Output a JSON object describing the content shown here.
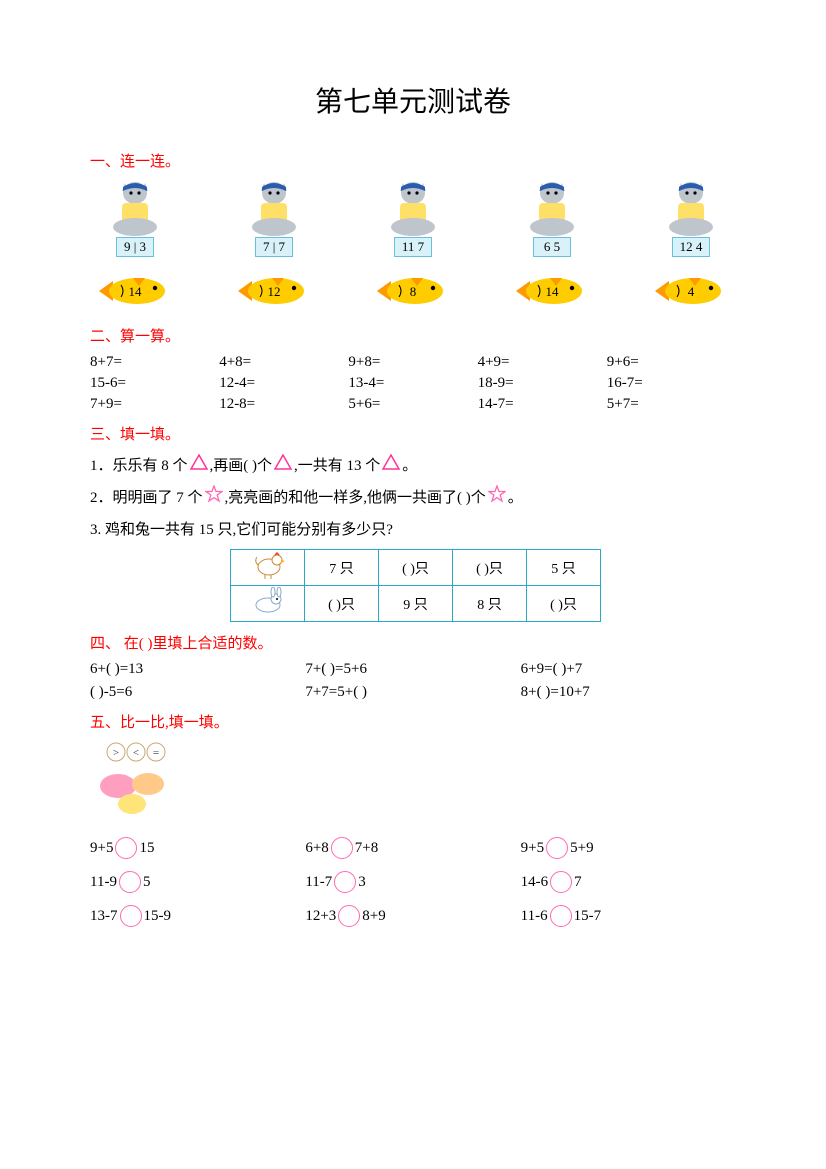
{
  "title": "第七单元测试卷",
  "sections": {
    "s1": "一、连一连。",
    "s2": "二、算一算。",
    "s3": "三、填一填。",
    "s4": "四、 在(      )里填上合适的数。",
    "s5": "五、比一比,填一填。"
  },
  "cats": [
    "9 | 3",
    "7 | 7",
    "11 7",
    "6  5",
    "12 4"
  ],
  "fish": [
    "14",
    "12",
    "8",
    "14",
    "4"
  ],
  "calc": [
    [
      "8+7=",
      "4+8=",
      "9+8=",
      "4+9=",
      "9+6="
    ],
    [
      "15-6=",
      "12-4=",
      "13-4=",
      "18-9=",
      "16-7="
    ],
    [
      "7+9=",
      "12-8=",
      "5+6=",
      "14-7=",
      "5+7="
    ]
  ],
  "q3": {
    "l1a": "1．乐乐有 8 个",
    "l1b": ",再画(      )个",
    "l1c": ",一共有 13 个",
    "l1d": "。",
    "l2a": "2．明明画了 7 个",
    "l2b": ",亮亮画的和他一样多,他俩一共画了(      )个",
    "l2c": "。",
    "l3": "3. 鸡和兔一共有 15 只,它们可能分别有多少只?",
    "table": {
      "r1": [
        "",
        "7 只",
        "(     )只",
        "(     )只",
        "5 只"
      ],
      "r2": [
        "",
        "(     )只",
        "9 只",
        "8 只",
        "(     )只"
      ]
    }
  },
  "q4": {
    "r1": [
      "6+(      )=13",
      "7+(      )=5+6",
      "6+9=(      )+7"
    ],
    "r2": [
      "(      )-5=6",
      "7+7=5+(      )",
      "8+(      )=10+7"
    ]
  },
  "q5": {
    "r1": [
      [
        "9+5",
        "15"
      ],
      [
        "6+8",
        "7+8"
      ],
      [
        "9+5",
        "5+9"
      ]
    ],
    "r2": [
      [
        "11-9",
        "5"
      ],
      [
        "11-7",
        "3"
      ],
      [
        "14-6",
        "7"
      ]
    ],
    "r3": [
      [
        "13-7",
        "15-9"
      ],
      [
        "12+3",
        "8+9"
      ],
      [
        "11-6",
        "15-7"
      ]
    ]
  },
  "colors": {
    "accent_red": "#ff0000",
    "tri_stroke": "#ff3399",
    "star_stroke": "#ff66b3",
    "fish_body": "#ffcc00",
    "fish_fin": "#ff9900",
    "cat_grey": "#bfc5cc",
    "cat_blue": "#2a5db0",
    "cat_yellow": "#ffe066",
    "table_border": "#2aa8c7",
    "circle": "#ff69b4"
  }
}
